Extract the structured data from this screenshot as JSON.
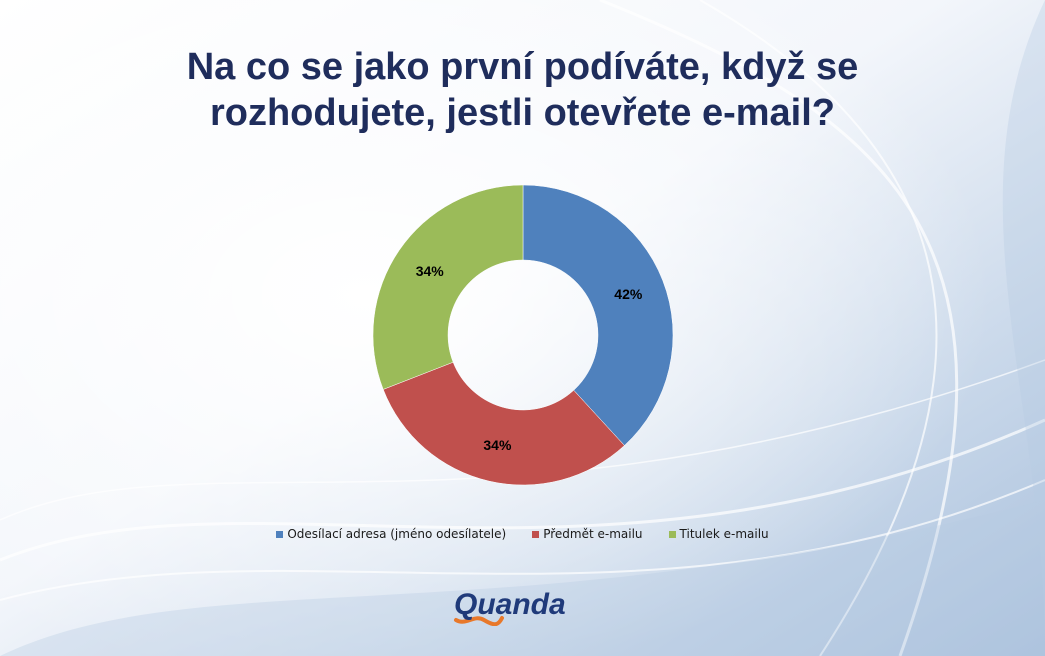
{
  "title_lines": [
    "Na co se jako první podíváte, když se",
    "rozhodujete, jestli otevřete e-mail?"
  ],
  "chart_data": {
    "type": "pie",
    "variant": "donut",
    "categories": [
      "Odesílací adresa (jméno odesílatele)",
      "Předmět e-mailu",
      "Titulek e-mailu"
    ],
    "values": [
      42,
      34,
      34
    ],
    "labels": [
      "42%",
      "34%",
      "34%"
    ],
    "colors": [
      "#4f81bd",
      "#c0504d",
      "#9bbb59"
    ],
    "legend_position": "bottom"
  },
  "logo": {
    "text": "Quanda",
    "colors": {
      "primary": "#1f3a7a",
      "accent": "#e8782a"
    }
  },
  "colors": {
    "title": "#1f2d5c",
    "background_light": "#ffffff",
    "background_dark": "#9fb8d6"
  }
}
